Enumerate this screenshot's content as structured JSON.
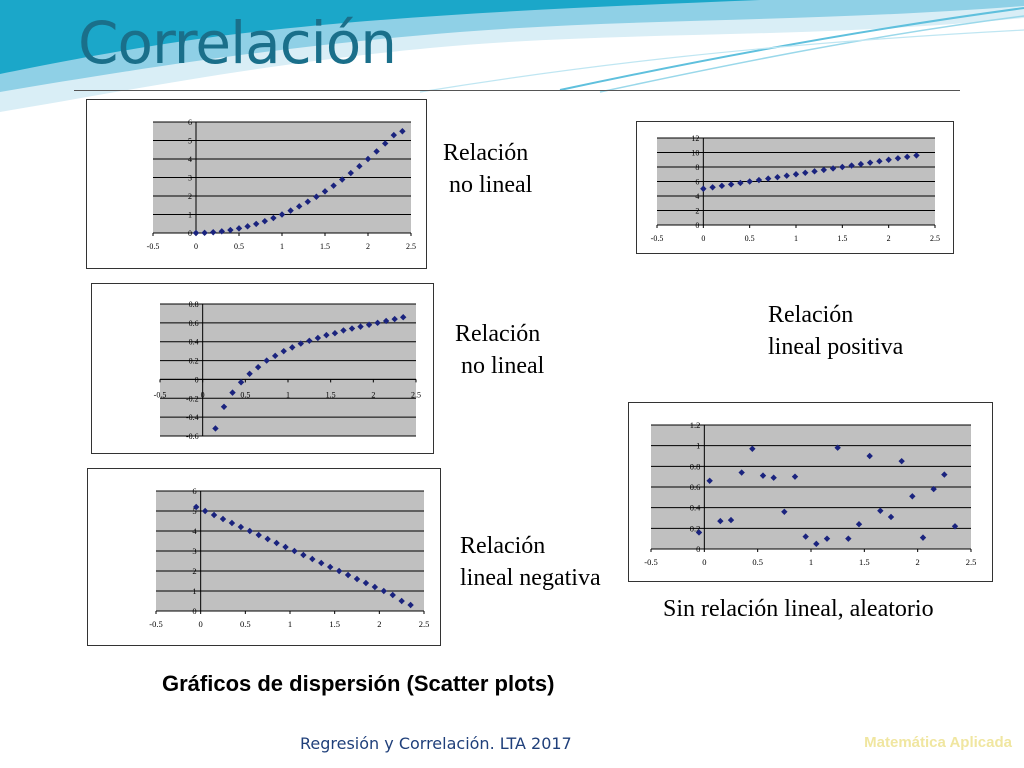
{
  "page": {
    "title": "Correlación",
    "caption": "Gráficos de dispersión (Scatter plots)",
    "footer": "Regresión y Correlación. LTA 2017",
    "watermark": "Matemática Aplicada"
  },
  "colors": {
    "accent": "#1ba7c9",
    "title": "#1a6f8a",
    "marker": "#1a237e",
    "plot_bg": "#c0c0c0"
  },
  "labels": {
    "curve_up": [
      "Relación",
      " no lineal"
    ],
    "log_curve": [
      "Relación",
      " no lineal"
    ],
    "positive": [
      "Relación",
      "lineal positiva"
    ],
    "negative": [
      "Relación",
      "lineal negativa"
    ],
    "random": "Sin relación lineal, aleatorio"
  },
  "chart_data": [
    {
      "id": "curve_up",
      "type": "scatter",
      "x": [
        0,
        0.1,
        0.2,
        0.3,
        0.4,
        0.5,
        0.6,
        0.7,
        0.8,
        0.9,
        1.0,
        1.1,
        1.2,
        1.3,
        1.4,
        1.5,
        1.6,
        1.7,
        1.8,
        1.9,
        2.0,
        2.1,
        2.2,
        2.3,
        2.4
      ],
      "y": [
        0,
        0.01,
        0.04,
        0.09,
        0.16,
        0.25,
        0.36,
        0.49,
        0.64,
        0.81,
        1.0,
        1.21,
        1.44,
        1.69,
        1.96,
        2.25,
        2.56,
        2.89,
        3.24,
        3.61,
        4.0,
        4.41,
        4.84,
        5.29,
        5.5
      ],
      "xlim": [
        -0.5,
        2.5
      ],
      "ylim": [
        0,
        6
      ],
      "xticks": [
        "-0.5",
        "0",
        "0.5",
        "1",
        "1.5",
        "2",
        "2.5"
      ],
      "yticks": [
        "0",
        "1",
        "2",
        "3",
        "4",
        "5",
        "6"
      ]
    },
    {
      "id": "positive",
      "type": "scatter",
      "x": [
        0,
        0.1,
        0.2,
        0.3,
        0.4,
        0.5,
        0.6,
        0.7,
        0.8,
        0.9,
        1.0,
        1.1,
        1.2,
        1.3,
        1.4,
        1.5,
        1.6,
        1.7,
        1.8,
        1.9,
        2.0,
        2.1,
        2.2,
        2.3
      ],
      "y": [
        5,
        5.2,
        5.4,
        5.6,
        5.8,
        6,
        6.2,
        6.4,
        6.6,
        6.8,
        7,
        7.2,
        7.4,
        7.6,
        7.8,
        8,
        8.2,
        8.4,
        8.6,
        8.8,
        9,
        9.2,
        9.4,
        9.6
      ],
      "xlim": [
        -0.5,
        2.5
      ],
      "ylim": [
        0,
        12
      ],
      "xticks": [
        "-0.5",
        "0",
        "0.5",
        "1",
        "1.5",
        "2",
        "2.5"
      ],
      "yticks": [
        "0",
        "2",
        "4",
        "6",
        "8",
        "10",
        "12"
      ]
    },
    {
      "id": "log_curve",
      "type": "scatter",
      "x": [
        0.15,
        0.25,
        0.35,
        0.45,
        0.55,
        0.65,
        0.75,
        0.85,
        0.95,
        1.05,
        1.15,
        1.25,
        1.35,
        1.45,
        1.55,
        1.65,
        1.75,
        1.85,
        1.95,
        2.05,
        2.15,
        2.25,
        2.35
      ],
      "y": [
        -0.52,
        -0.29,
        -0.14,
        -0.03,
        0.06,
        0.13,
        0.2,
        0.25,
        0.3,
        0.34,
        0.38,
        0.41,
        0.44,
        0.47,
        0.49,
        0.52,
        0.54,
        0.56,
        0.58,
        0.6,
        0.62,
        0.64,
        0.66
      ],
      "xlim": [
        -0.5,
        2.5
      ],
      "ylim": [
        -0.6,
        0.8
      ],
      "xticks": [
        "-0.5",
        "0",
        "0.5",
        "1",
        "1.5",
        "2",
        "2.5"
      ],
      "yticks": [
        "-0.6",
        "-0.4",
        "-0.2",
        "0",
        "0.2",
        "0.4",
        "0.6",
        "0.8"
      ]
    },
    {
      "id": "random",
      "type": "scatter",
      "x": [
        -0.05,
        0.05,
        0.15,
        0.25,
        0.35,
        0.45,
        0.55,
        0.65,
        0.75,
        0.85,
        0.95,
        1.05,
        1.15,
        1.25,
        1.35,
        1.45,
        1.55,
        1.65,
        1.75,
        1.85,
        1.95,
        2.05,
        2.15,
        2.25,
        2.35
      ],
      "y": [
        0.16,
        0.66,
        0.27,
        0.28,
        0.74,
        0.97,
        0.71,
        0.69,
        0.36,
        0.7,
        0.12,
        0.05,
        0.1,
        0.98,
        0.1,
        0.24,
        0.9,
        0.37,
        0.31,
        0.85,
        0.51,
        0.11,
        0.58,
        0.72,
        0.22
      ],
      "xlim": [
        -0.5,
        2.5
      ],
      "ylim": [
        0,
        1.2
      ],
      "xticks": [
        "-0.5",
        "0",
        "0.5",
        "1",
        "1.5",
        "2",
        "2.5"
      ],
      "yticks": [
        "0",
        "0.2",
        "0.4",
        "0.6",
        "0.8",
        "1",
        "1.2"
      ]
    },
    {
      "id": "negative",
      "type": "scatter",
      "x": [
        -0.05,
        0.05,
        0.15,
        0.25,
        0.35,
        0.45,
        0.55,
        0.65,
        0.75,
        0.85,
        0.95,
        1.05,
        1.15,
        1.25,
        1.35,
        1.45,
        1.55,
        1.65,
        1.75,
        1.85,
        1.95,
        2.05,
        2.15,
        2.25,
        2.35
      ],
      "y": [
        5.2,
        5,
        4.8,
        4.6,
        4.4,
        4.2,
        4,
        3.8,
        3.6,
        3.4,
        3.2,
        3,
        2.8,
        2.6,
        2.4,
        2.2,
        2,
        1.8,
        1.6,
        1.4,
        1.2,
        1,
        0.8,
        0.5,
        0.3
      ],
      "xlim": [
        -0.5,
        2.5
      ],
      "ylim": [
        0,
        6
      ],
      "xticks": [
        "-0.5",
        "0",
        "0.5",
        "1",
        "1.5",
        "2",
        "2.5"
      ],
      "yticks": [
        "0",
        "1",
        "2",
        "3",
        "4",
        "5",
        "6"
      ]
    }
  ]
}
